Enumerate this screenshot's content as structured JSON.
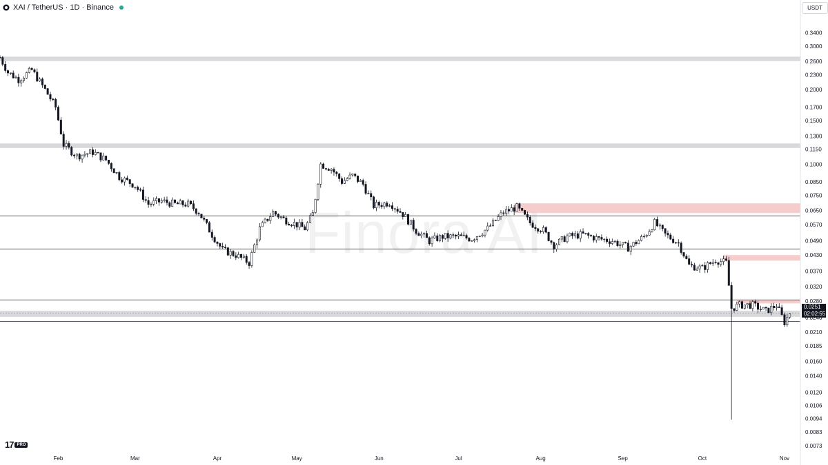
{
  "header": {
    "symbol": "XAI",
    "separator": " / ",
    "quote": "TetherUS",
    "interval_exchange": " · 1D · Binance",
    "status_color": "#22ab94"
  },
  "currency": "USDT",
  "watermark": "Finora AI",
  "tv_logo": {
    "mark": "17",
    "pro": "PRO"
  },
  "current_price": {
    "price": "0.0251",
    "countdown": "02:02:55"
  },
  "colors": {
    "candle_outline": "#131722",
    "up_fill": "#ffffff",
    "down_fill": "#131722",
    "zone_gray": "#d9d9db",
    "zone_red": "#f2b8b8",
    "line": "#131722"
  },
  "chart_data": {
    "type": "candlestick",
    "y_scale": "log",
    "ylim": [
      0.0068,
      0.4
    ],
    "y_ticks": [
      "0.3400",
      "0.3000",
      "0.2600",
      "0.2300",
      "0.2000",
      "0.1700",
      "0.1500",
      "0.1300",
      "0.1150",
      "0.1000",
      "0.0850",
      "0.0750",
      "0.0650",
      "0.0570",
      "0.0490",
      "0.0430",
      "0.0370",
      "0.0320",
      "0.0280",
      "0.0240",
      "0.0210",
      "0.0185",
      "0.0160",
      "0.0140",
      "0.0120",
      "0.0106",
      "0.0094",
      "0.0083",
      "0.0073"
    ],
    "x_ticks": [
      "Feb",
      "Mar",
      "Apr",
      "May",
      "Jun",
      "Jul",
      "Aug",
      "Sep",
      "Oct",
      "Nov"
    ],
    "x_range": [
      "2024-01-10",
      "2024-11-07"
    ],
    "price_path": [
      [
        "2024-01-10",
        0.27
      ],
      [
        "2024-01-13",
        0.235
      ],
      [
        "2024-01-17",
        0.22
      ],
      [
        "2024-01-22",
        0.24
      ],
      [
        "2024-01-27",
        0.2
      ],
      [
        "2024-01-31",
        0.17
      ],
      [
        "2024-02-03",
        0.12
      ],
      [
        "2024-02-08",
        0.108
      ],
      [
        "2024-02-14",
        0.112
      ],
      [
        "2024-02-19",
        0.104
      ],
      [
        "2024-02-24",
        0.089
      ],
      [
        "2024-03-01",
        0.082
      ],
      [
        "2024-03-06",
        0.069
      ],
      [
        "2024-03-11",
        0.071
      ],
      [
        "2024-03-16",
        0.069
      ],
      [
        "2024-03-21",
        0.069
      ],
      [
        "2024-03-25",
        0.064
      ],
      [
        "2024-03-30",
        0.052
      ],
      [
        "2024-04-03",
        0.045
      ],
      [
        "2024-04-08",
        0.043
      ],
      [
        "2024-04-13",
        0.04
      ],
      [
        "2024-04-17",
        0.055
      ],
      [
        "2024-04-22",
        0.064
      ],
      [
        "2024-04-26",
        0.06
      ],
      [
        "2024-05-01",
        0.057
      ],
      [
        "2024-05-04",
        0.055
      ],
      [
        "2024-05-07",
        0.063
      ],
      [
        "2024-05-10",
        0.1
      ],
      [
        "2024-05-14",
        0.096
      ],
      [
        "2024-05-18",
        0.085
      ],
      [
        "2024-05-22",
        0.09
      ],
      [
        "2024-05-26",
        0.083
      ],
      [
        "2024-05-30",
        0.068
      ],
      [
        "2024-06-05",
        0.07
      ],
      [
        "2024-06-10",
        0.063
      ],
      [
        "2024-06-15",
        0.054
      ],
      [
        "2024-06-20",
        0.049
      ],
      [
        "2024-06-25",
        0.051
      ],
      [
        "2024-07-01",
        0.051
      ],
      [
        "2024-07-06",
        0.05
      ],
      [
        "2024-07-12",
        0.055
      ],
      [
        "2024-07-18",
        0.064
      ],
      [
        "2024-07-23",
        0.067
      ],
      [
        "2024-07-28",
        0.058
      ],
      [
        "2024-08-02",
        0.054
      ],
      [
        "2024-08-06",
        0.047
      ],
      [
        "2024-08-11",
        0.051
      ],
      [
        "2024-08-17",
        0.052
      ],
      [
        "2024-08-23",
        0.05
      ],
      [
        "2024-08-28",
        0.049
      ],
      [
        "2024-09-03",
        0.046
      ],
      [
        "2024-09-09",
        0.051
      ],
      [
        "2024-09-13",
        0.058
      ],
      [
        "2024-09-17",
        0.052
      ],
      [
        "2024-09-22",
        0.048
      ],
      [
        "2024-09-26",
        0.039
      ],
      [
        "2024-10-01",
        0.038
      ],
      [
        "2024-10-06",
        0.041
      ],
      [
        "2024-10-10",
        0.04
      ],
      [
        "2024-10-12",
        0.0262
      ],
      [
        "2024-10-15",
        0.027
      ],
      [
        "2024-10-20",
        0.027
      ],
      [
        "2024-10-25",
        0.0255
      ],
      [
        "2024-10-29",
        0.027
      ],
      [
        "2024-11-01",
        0.023
      ],
      [
        "2024-11-03",
        0.0251
      ]
    ],
    "spike_low": {
      "date": "2024-10-12",
      "low": 0.0093
    },
    "horizontal_lines": [
      0.062,
      0.0455,
      0.0283,
      0.0232
    ],
    "zones": [
      {
        "low": 0.261,
        "high": 0.272,
        "color": "gray",
        "start": "2024-01-10"
      },
      {
        "low": 0.1163,
        "high": 0.1213,
        "color": "gray",
        "start": "2024-01-10"
      },
      {
        "low": 0.0635,
        "high": 0.0695,
        "color": "red",
        "start": "2024-07-22"
      },
      {
        "low": 0.0408,
        "high": 0.043,
        "color": "red",
        "start": "2024-10-09"
      },
      {
        "low": 0.0274,
        "high": 0.0283,
        "color": "red",
        "start": "2024-10-14"
      },
      {
        "low": 0.0242,
        "high": 0.0256,
        "color": "gray",
        "start": "2024-01-10"
      }
    ]
  }
}
